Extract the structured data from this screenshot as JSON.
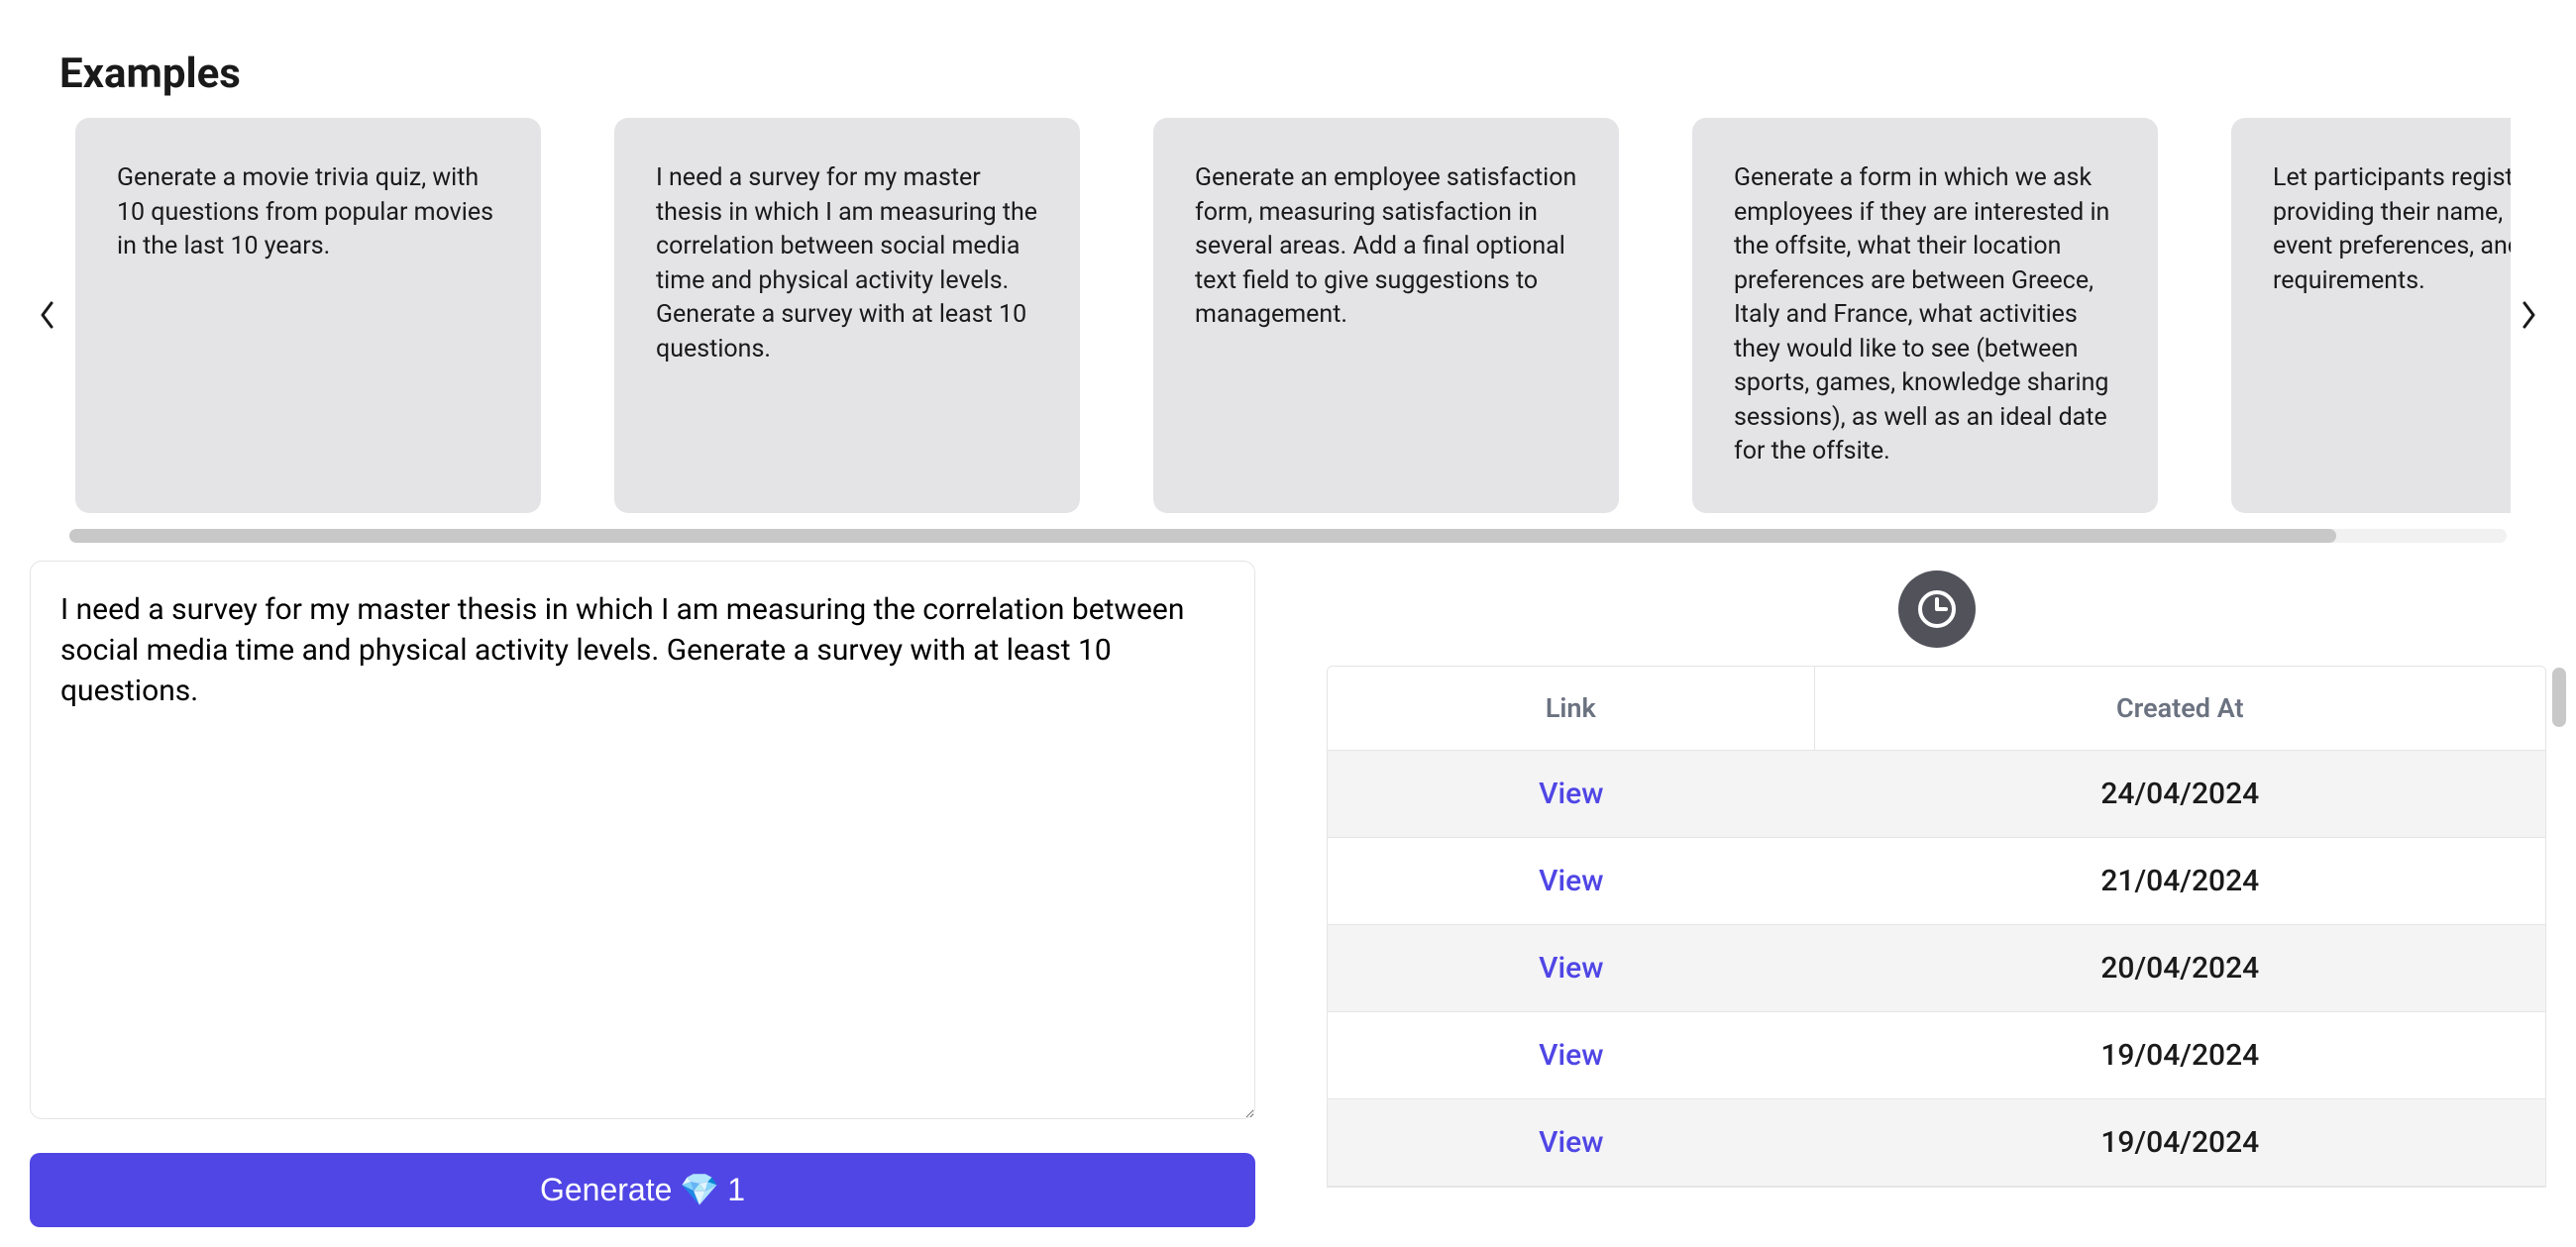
{
  "heading": "Examples",
  "examples": [
    "Generate a movie trivia quiz, with 10 questions from popular movies in the last 10 years.",
    "I need a survey for my master thesis in which I am measuring the correlation between social media time and physical activity levels. Generate a survey with at least 10 questions.",
    "Generate an employee satisfaction form, measuring satisfaction in several areas. Add a final optional text field to give suggestions to management.",
    "Generate a form in which we ask employees if they are interested in the offsite, what their location preferences are between Greece, Italy and France, what activities they would like to see (between sports, games, knowledge sharing sessions), as well as an ideal date for the offsite.",
    "Let participants register by providing their name, information, event preferences, and any special requirements."
  ],
  "prompt_value": "I need a survey for my master thesis in which I am measuring the correlation between social media time and physical activity levels. Generate a survey with at least 10 questions.",
  "generate_button": {
    "label": "Generate",
    "emoji": "💎",
    "cost": "1"
  },
  "history": {
    "columns": {
      "link": "Link",
      "created": "Created At"
    },
    "link_label": "View",
    "rows": [
      {
        "date": "24/04/2024"
      },
      {
        "date": "21/04/2024"
      },
      {
        "date": "20/04/2024"
      },
      {
        "date": "19/04/2024"
      },
      {
        "date": "19/04/2024"
      }
    ]
  },
  "colors": {
    "card_bg": "#e4e4e7",
    "button_bg": "#5046e5",
    "link_color": "#4f46e5",
    "row_alt_bg": "#f4f4f5",
    "clock_bg": "#52525b",
    "header_text": "#6b7280"
  }
}
